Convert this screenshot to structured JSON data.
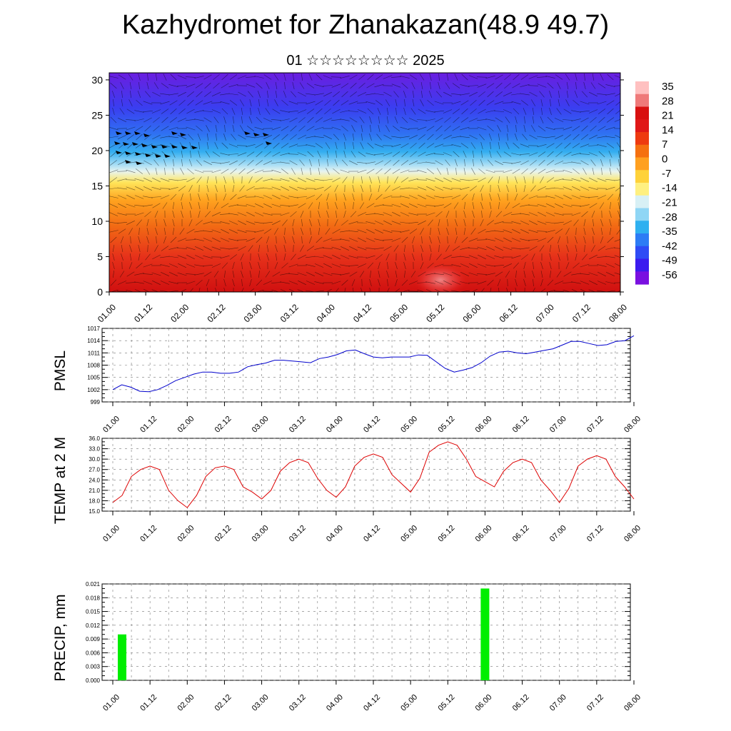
{
  "header": {
    "title": "Kazhydromet for Zhanakazan(48.9 49.7)",
    "subtitle": "01 ☆☆☆☆☆☆☆☆ 2025"
  },
  "colors": {
    "pmsl_line": "#0000cc",
    "temp_line": "#dd0000",
    "precip_bar": "#00ee00",
    "colorbar": [
      "#7a10e0",
      "#3b1bef",
      "#2f4bf5",
      "#2d7cf5",
      "#2fb0f0",
      "#8fd6f5",
      "#d8f0f5",
      "#fff080",
      "#ffd23a",
      "#ffa020",
      "#f57010",
      "#ee3a10",
      "#e01818",
      "#d81010",
      "#ef7a7a",
      "#ffc0c0"
    ]
  },
  "chart_data": [
    {
      "type": "heatmap",
      "title": "",
      "xlabel": "",
      "ylabel": "",
      "x_ticks": [
        "01.00",
        "01.12",
        "02.00",
        "02.12",
        "03.00",
        "03.12",
        "04.00",
        "04.12",
        "05.00",
        "05.12",
        "06.00",
        "06.12",
        "07.00",
        "07.12",
        "08.00"
      ],
      "y_ticks": [
        "0",
        "5",
        "10",
        "15",
        "20",
        "25",
        "30"
      ],
      "ylim": [
        0,
        31
      ],
      "colorbar_labels": [
        "35",
        "28",
        "21",
        "14",
        "7",
        "0",
        "-7",
        "-14",
        "-21",
        "-28",
        "-35",
        "-42",
        "-49",
        "-56"
      ],
      "zlim": [
        -60,
        38
      ],
      "overlay": "wind barbs"
    },
    {
      "type": "line",
      "ylabel": "PMSL",
      "x_ticks": [
        "01.00",
        "01.12",
        "02.00",
        "02.12",
        "03.00",
        "03.12",
        "04.00",
        "04.12",
        "05.00",
        "05.12",
        "06.00",
        "06.12",
        "07.00",
        "07.12",
        "08.00"
      ],
      "y_ticks": [
        "1017",
        "1014",
        "1011",
        "1008",
        "1005",
        "1002",
        "999"
      ],
      "ylim": [
        999,
        1017
      ],
      "series": [
        {
          "values": [
            1002.0,
            1003.2,
            1002.6,
            1001.6,
            1001.5,
            1002.0,
            1003.0,
            1004.2,
            1005.0,
            1005.8,
            1006.3,
            1006.3,
            1006.0,
            1006.0,
            1006.3,
            1007.6,
            1008.1,
            1008.5,
            1009.2,
            1009.2,
            1009.0,
            1008.8,
            1008.6,
            1009.6,
            1010.0,
            1010.6,
            1011.5,
            1011.7,
            1010.8,
            1010.0,
            1009.8,
            1010.0,
            1010.0,
            1010.0,
            1010.5,
            1010.4,
            1008.8,
            1007.2,
            1006.3,
            1006.8,
            1007.4,
            1008.6,
            1010.2,
            1011.2,
            1011.4,
            1011.0,
            1010.8,
            1011.2,
            1011.6,
            1012.0,
            1012.9,
            1013.8,
            1013.8,
            1013.3,
            1012.8,
            1013.0,
            1013.8,
            1014.0,
            1015.2
          ]
        }
      ]
    },
    {
      "type": "line",
      "ylabel": "TEMP at 2 M",
      "x_ticks": [
        "01.00",
        "01.12",
        "02.00",
        "02.12",
        "03.00",
        "03.12",
        "04.00",
        "04.12",
        "05.00",
        "05.12",
        "06.00",
        "06.12",
        "07.00",
        "07.12",
        "08.00"
      ],
      "y_ticks": [
        "36.0",
        "33.0",
        "30.0",
        "27.0",
        "24.0",
        "21.0",
        "18.0",
        "15.0"
      ],
      "ylim": [
        15,
        36
      ],
      "series": [
        {
          "values": [
            17.5,
            19.5,
            25.0,
            27.0,
            28.0,
            27.0,
            21.0,
            18.0,
            16.0,
            19.5,
            25.0,
            27.5,
            28.0,
            27.0,
            22.0,
            20.5,
            18.5,
            21.0,
            26.5,
            29.0,
            30.0,
            29.0,
            24.5,
            21.0,
            19.0,
            22.0,
            28.0,
            30.5,
            31.5,
            30.5,
            25.5,
            23.0,
            20.5,
            24.5,
            32.0,
            34.0,
            35.0,
            34.0,
            30.0,
            25.0,
            23.5,
            22.0,
            26.5,
            29.0,
            30.0,
            29.0,
            24.0,
            21.0,
            17.5,
            21.5,
            28.0,
            30.0,
            31.0,
            30.0,
            25.0,
            22.0,
            18.5
          ]
        }
      ]
    },
    {
      "type": "bar",
      "ylabel": "PRECIP, mm",
      "x_ticks": [
        "01.00",
        "01.12",
        "02.00",
        "02.12",
        "03.00",
        "03.12",
        "04.00",
        "04.12",
        "05.00",
        "05.12",
        "06.00",
        "06.12",
        "07.00",
        "07.12",
        "08.00"
      ],
      "y_ticks": [
        "0.021",
        "0.018",
        "0.015",
        "0.012",
        "0.009",
        "0.006",
        "0.003",
        "0.000"
      ],
      "ylim": [
        0,
        0.021
      ],
      "bars": [
        {
          "x_hours": 3,
          "value": 0.01
        },
        {
          "x_hours": 120,
          "value": 0.02
        }
      ]
    }
  ]
}
